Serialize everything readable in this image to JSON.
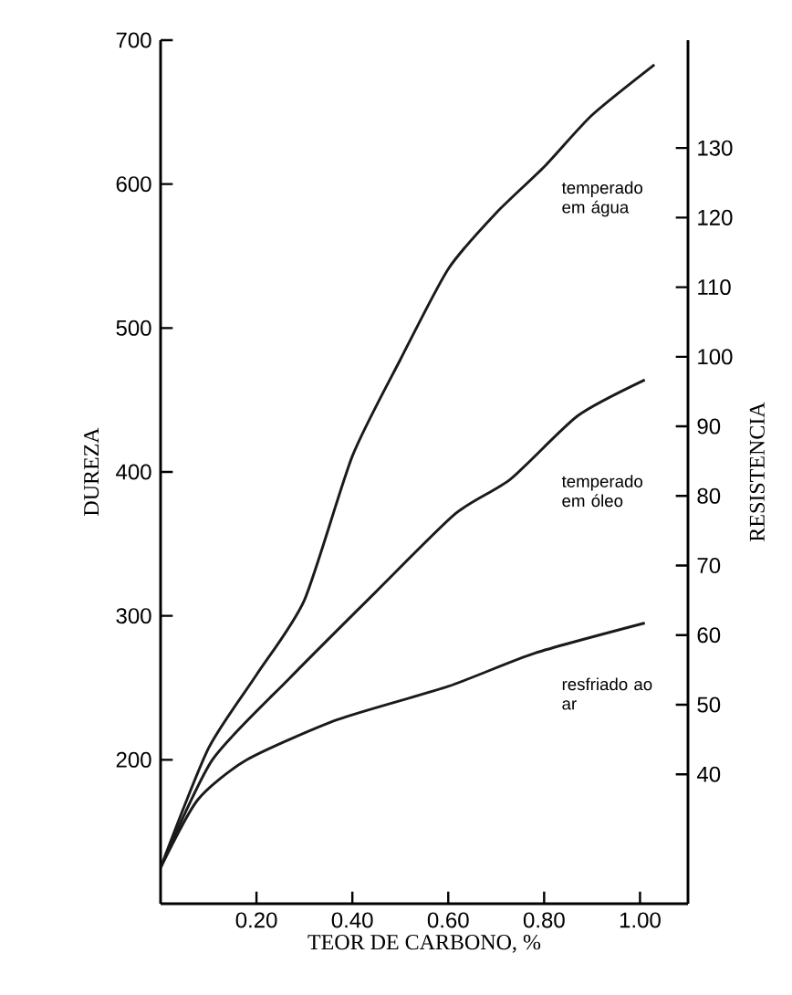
{
  "chart_data": {
    "type": "line",
    "xlabel": "TEOR DE CARBONO, %",
    "ylabel": "DUREZA",
    "y2label": "RESISTENCIA",
    "xlim": [
      0,
      1.1
    ],
    "ylim": [
      100,
      700
    ],
    "y2lim": [
      21.4,
      145.5
    ],
    "xticks": [
      {
        "value": 0.2,
        "label": "0.20"
      },
      {
        "value": 0.4,
        "label": "0.40"
      },
      {
        "value": 0.6,
        "label": "0.60"
      },
      {
        "value": 0.8,
        "label": "0.80"
      },
      {
        "value": 1.0,
        "label": "1.00"
      }
    ],
    "yticks": [
      200,
      300,
      400,
      500,
      600,
      700
    ],
    "y2ticks": [
      40,
      50,
      60,
      70,
      80,
      90,
      100,
      110,
      120,
      130
    ],
    "grid": false,
    "marker": "none",
    "line_style": "solid",
    "series": [
      {
        "color": "#1a1a1a",
        "x": [
          0,
          0.1,
          0.2,
          0.3,
          0.4,
          0.5,
          0.6,
          0.7,
          0.8,
          0.9,
          1.03
        ],
        "values": [
          125,
          208,
          259,
          311,
          411,
          478,
          541,
          580,
          612,
          648,
          683
        ]
      },
      {
        "color": "#1a1a1a",
        "x": [
          0,
          0.108,
          0.27,
          0.45,
          0.615,
          0.73,
          0.87,
          1.01
        ],
        "values": [
          125,
          200,
          257,
          317,
          371,
          395,
          439,
          464
        ]
      },
      {
        "color": "#1a1a1a",
        "x": [
          0,
          0.077,
          0.18,
          0.37,
          0.6,
          0.78,
          1.01
        ],
        "values": [
          125,
          172,
          200,
          228,
          251,
          274,
          295
        ]
      }
    ],
    "annotations": [
      "temperado em água",
      "temperado em óleo",
      "resfriado ao ar"
    ]
  }
}
